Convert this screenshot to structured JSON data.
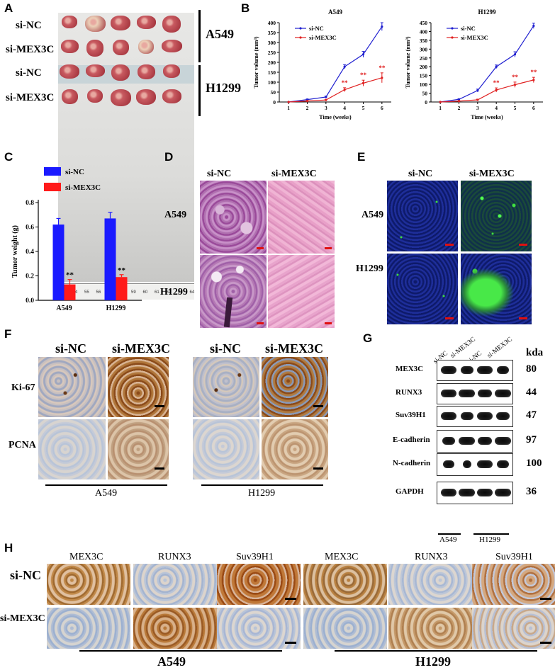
{
  "panelA": {
    "letter": "A",
    "rows": [
      "si-NC",
      "si-MEX3C",
      "si-NC",
      "si-MEX3C"
    ],
    "groups": [
      "A549",
      "H1299"
    ],
    "ruler_numbers": [
      "53",
      "54",
      "55",
      "56",
      "57",
      "58",
      "59",
      "60",
      "61",
      "62",
      "63",
      "64"
    ]
  },
  "panelB": {
    "letter": "B",
    "charts": [
      {
        "title": "A549",
        "ylabel": "Tumor volume (mm³)",
        "xlabel": "Time (weeks)",
        "yticks": [
          0,
          50,
          100,
          150,
          200,
          250,
          300,
          350,
          400
        ],
        "xticks": [
          1,
          2,
          3,
          4,
          5,
          6
        ],
        "series": [
          {
            "name": "si-NC",
            "color": "#2020d0",
            "x": [
              1,
              2,
              3,
              4,
              5,
              6
            ],
            "values": [
              0,
              12,
              25,
              178,
              240,
              380
            ],
            "err": [
              0,
              3,
              5,
              10,
              15,
              20
            ]
          },
          {
            "name": "si-MEX3C",
            "color": "#e02020",
            "x": [
              1,
              2,
              3,
              4,
              5,
              6
            ],
            "values": [
              0,
              5,
              10,
              62,
              95,
              122
            ],
            "err": [
              0,
              2,
              3,
              10,
              15,
              25
            ]
          }
        ],
        "sig_label": "**",
        "sig_at": [
          4,
          5,
          6
        ],
        "legend": "top-left"
      },
      {
        "title": "H1299",
        "ylabel": "Tumor volume (mm³)",
        "xlabel": "Time (weeks)",
        "yticks": [
          0,
          50,
          100,
          150,
          200,
          250,
          300,
          350,
          400,
          450
        ],
        "xticks": [
          1,
          2,
          3,
          4,
          5,
          6
        ],
        "series": [
          {
            "name": "si-NC",
            "color": "#2020d0",
            "x": [
              1,
              2,
              3,
              4,
              5,
              6
            ],
            "values": [
              0,
              15,
              65,
              200,
              270,
              432
            ],
            "err": [
              0,
              3,
              8,
              10,
              15,
              15
            ]
          },
          {
            "name": "si-MEX3C",
            "color": "#e02020",
            "x": [
              1,
              2,
              3,
              4,
              5,
              6
            ],
            "values": [
              0,
              5,
              12,
              68,
              98,
              125
            ],
            "err": [
              0,
              2,
              4,
              12,
              15,
              15
            ]
          }
        ],
        "sig_label": "**",
        "sig_at": [
          4,
          5,
          6
        ],
        "legend": "top-left"
      }
    ]
  },
  "panelC": {
    "letter": "C",
    "chart_data": {
      "type": "bar",
      "categories": [
        "A549",
        "H1299"
      ],
      "series": [
        {
          "name": "si-NC",
          "color": "#1a1aff",
          "values": [
            0.62,
            0.67
          ],
          "err": [
            0.05,
            0.05
          ]
        },
        {
          "name": "si-MEX3C",
          "color": "#ff1a1a",
          "values": [
            0.13,
            0.19
          ],
          "err": [
            0.04,
            0.02
          ]
        }
      ],
      "ylabel": "Tumor weight (g)",
      "yticks": [
        "0.0",
        "0.2",
        "0.4",
        "0.6",
        "0.8"
      ],
      "ylim": [
        0,
        0.8
      ],
      "sig_label": "**",
      "legend": "top-left"
    }
  },
  "panelD": {
    "letter": "D",
    "cols": [
      "si-NC",
      "si-MEX3C"
    ],
    "rows": [
      "A549",
      "H1299"
    ]
  },
  "panelE": {
    "letter": "E",
    "cols": [
      "si-NC",
      "si-MEX3C"
    ],
    "rows": [
      "A549",
      "H1299"
    ]
  },
  "panelF": {
    "letter": "F",
    "cols_left": [
      "si-NC",
      "si-MEX3C"
    ],
    "cols_right": [
      "si-NC",
      "si-MEX3C"
    ],
    "rows": [
      "Ki-67",
      "PCNA"
    ],
    "groups": [
      "A549",
      "H1299"
    ]
  },
  "panelG": {
    "letter": "G",
    "lanes": [
      "si-NC",
      "si-MEX3C",
      "si-NC",
      "si-MEX3C"
    ],
    "unit": "kda",
    "proteins": [
      {
        "name": "MEX3C",
        "kda": "80",
        "band_widths": [
          0.9,
          0.75,
          0.95,
          0.7
        ]
      },
      {
        "name": "RUNX3",
        "kda": "44",
        "band_widths": [
          0.9,
          0.95,
          0.85,
          0.95
        ]
      },
      {
        "name": "Suv39H1",
        "kda": "47",
        "band_widths": [
          0.95,
          0.75,
          0.95,
          0.8
        ]
      },
      {
        "name": "E-cadherin",
        "kda": "97",
        "band_widths": [
          0.75,
          0.95,
          0.8,
          0.95
        ]
      },
      {
        "name": "N-cadherin",
        "kda": "100",
        "band_widths": [
          0.7,
          0.5,
          0.95,
          0.7
        ]
      },
      {
        "name": "GAPDH",
        "kda": "36",
        "band_widths": [
          0.95,
          0.95,
          0.95,
          0.95
        ]
      }
    ],
    "groups": [
      "A549",
      "H1299"
    ]
  },
  "panelH": {
    "letter": "H",
    "cols": [
      "MEX3C",
      "RUNX3",
      "Suv39H1",
      "MEX3C",
      "RUNX3",
      "Suv39H1"
    ],
    "rows": [
      "si-NC",
      "si-MEX3C"
    ],
    "groups": [
      "A549",
      "H1299"
    ]
  },
  "colors": {
    "he_stain": "#c8649c",
    "ihc_brown": "#a0642a",
    "ihc_blue": "#8aa8c8",
    "fluor_blue": "#1a2a8a",
    "fluor_green": "#3fe040",
    "scale_red": "#e01010"
  }
}
